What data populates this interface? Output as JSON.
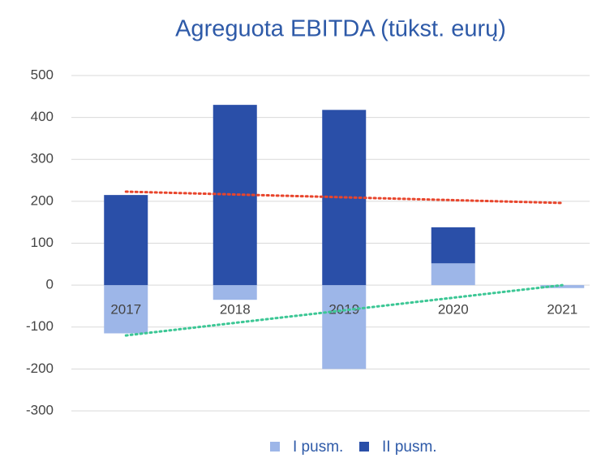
{
  "chart_data": {
    "type": "stacked_bar",
    "title": "Agreguota EBITDA (tūkst. eurų)",
    "categories": [
      "2017",
      "2018",
      "2019",
      "2020",
      "2021"
    ],
    "series": [
      {
        "name": "I pusm.",
        "color": "#9db6e8",
        "values": [
          -115,
          -35,
          -200,
          52,
          -7
        ]
      },
      {
        "name": "II pusm.",
        "color": "#2a4fa8",
        "values": [
          215,
          430,
          418,
          86,
          0
        ]
      }
    ],
    "trendlines": [
      {
        "color": "#e8452c",
        "values": [
          223,
          196
        ]
      },
      {
        "color": "#3cc795",
        "values": [
          -120,
          0
        ]
      }
    ],
    "ylim": [
      -300,
      500
    ],
    "yticks": [
      -300,
      -200,
      -100,
      0,
      100,
      200,
      300,
      400,
      500
    ],
    "grid": true,
    "legend": "bottom"
  }
}
